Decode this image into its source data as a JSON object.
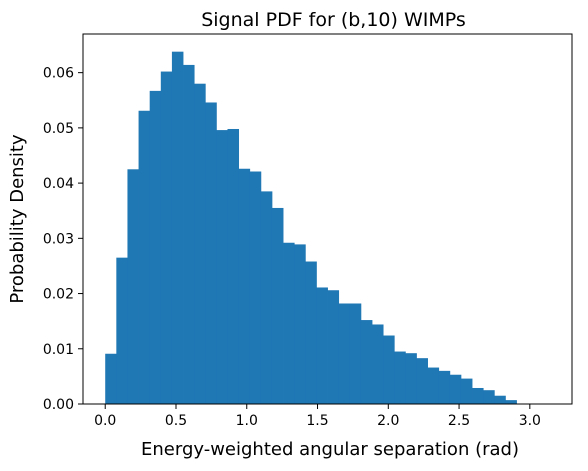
{
  "chart_data": {
    "type": "bar",
    "title": "Signal PDF for (b,10) WIMPs",
    "xlabel": "Energy-weighted angular separation (rad)",
    "ylabel": "Probability Density",
    "xlim": [
      -0.157,
      3.298
    ],
    "ylim": [
      0.0,
      0.067
    ],
    "x_ticks": [
      {
        "value": 0.0,
        "label": "0.0"
      },
      {
        "value": 0.5,
        "label": "0.5"
      },
      {
        "value": 1.0,
        "label": "1.0"
      },
      {
        "value": 1.5,
        "label": "1.5"
      },
      {
        "value": 2.0,
        "label": "2.0"
      },
      {
        "value": 2.5,
        "label": "2.5"
      },
      {
        "value": 3.0,
        "label": "3.0"
      }
    ],
    "y_ticks": [
      {
        "value": 0.0,
        "label": "0.00"
      },
      {
        "value": 0.01,
        "label": "0.01"
      },
      {
        "value": 0.02,
        "label": "0.02"
      },
      {
        "value": 0.03,
        "label": "0.03"
      },
      {
        "value": 0.04,
        "label": "0.04"
      },
      {
        "value": 0.05,
        "label": "0.05"
      },
      {
        "value": 0.06,
        "label": "0.06"
      }
    ],
    "bin_edges": [
      0.0,
      0.0785,
      0.1571,
      0.2356,
      0.3142,
      0.3927,
      0.4712,
      0.5498,
      0.6283,
      0.7069,
      0.7854,
      0.8639,
      0.9425,
      1.021,
      1.0996,
      1.1781,
      1.2566,
      1.3352,
      1.4137,
      1.4923,
      1.5708,
      1.6493,
      1.7279,
      1.8064,
      1.885,
      1.9635,
      2.042,
      2.1206,
      2.1991,
      2.2777,
      2.3562,
      2.4347,
      2.5133,
      2.5918,
      2.6704,
      2.7489,
      2.8274,
      2.906,
      2.9845,
      3.0631,
      3.1416
    ],
    "values": [
      0.0091,
      0.0265,
      0.0425,
      0.0531,
      0.0567,
      0.0602,
      0.0638,
      0.0614,
      0.058,
      0.0546,
      0.0496,
      0.0498,
      0.0426,
      0.0421,
      0.0385,
      0.0355,
      0.0292,
      0.0289,
      0.0258,
      0.0211,
      0.0206,
      0.0182,
      0.0182,
      0.0152,
      0.0144,
      0.0124,
      0.0095,
      0.0092,
      0.0083,
      0.0066,
      0.006,
      0.0053,
      0.0046,
      0.0029,
      0.0025,
      0.0015,
      0.0007,
      0.0,
      0.0,
      0.0
    ],
    "color": "#1f77b4",
    "grid": false,
    "legend": "none"
  }
}
